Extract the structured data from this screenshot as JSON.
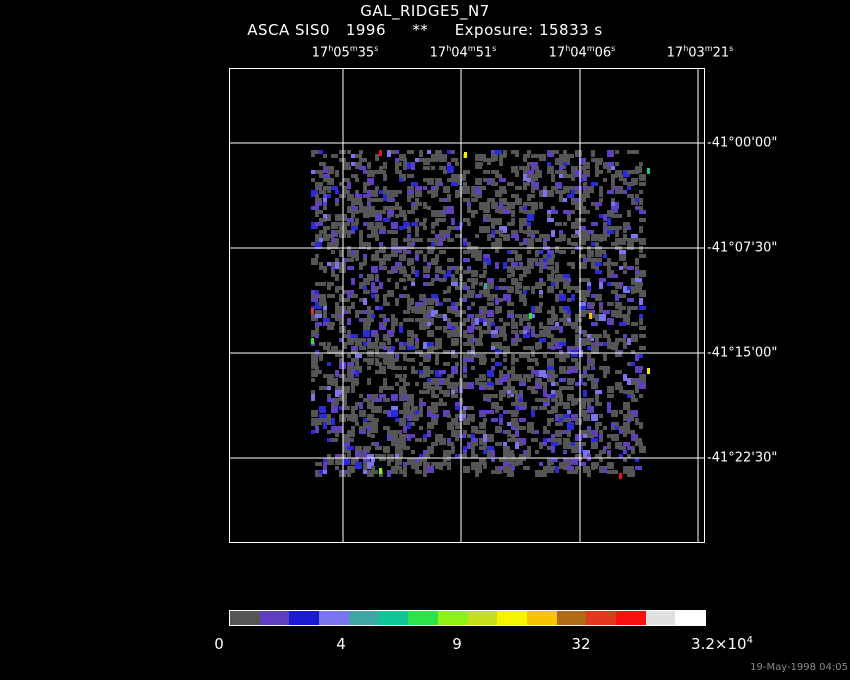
{
  "header": {
    "title": "GAL_RIDGE5_N7",
    "subtitle": "ASCA SIS0   1996     **     Exposure: 15833 s"
  },
  "ra_ticks": [
    {
      "h": "17",
      "m": "05",
      "s": "35"
    },
    {
      "h": "17",
      "m": "04",
      "s": "51"
    },
    {
      "h": "17",
      "m": "04",
      "s": "06"
    },
    {
      "h": "17",
      "m": "03",
      "s": "21"
    }
  ],
  "dec_ticks": [
    "-41°00'00\"",
    "-41°07'30\"",
    "-41°15'00\"",
    "-41°22'30\""
  ],
  "colorbar": {
    "colors": [
      "#555555",
      "#5f3fbf",
      "#1a1ad0",
      "#7a74f0",
      "#3fa6a6",
      "#12c596",
      "#2ee24a",
      "#8ef212",
      "#c4e01c",
      "#f6f400",
      "#f6c400",
      "#b06a12",
      "#e2381c",
      "#f81010",
      "#e0e0e0",
      "#ffffff"
    ],
    "labels": {
      "l0": "0",
      "l1": "4",
      "l2": "9",
      "l3": "32",
      "l4_base": "3.2×10",
      "l4_exp": "4"
    }
  },
  "timestamp": "19-May-1998 04:05"
}
